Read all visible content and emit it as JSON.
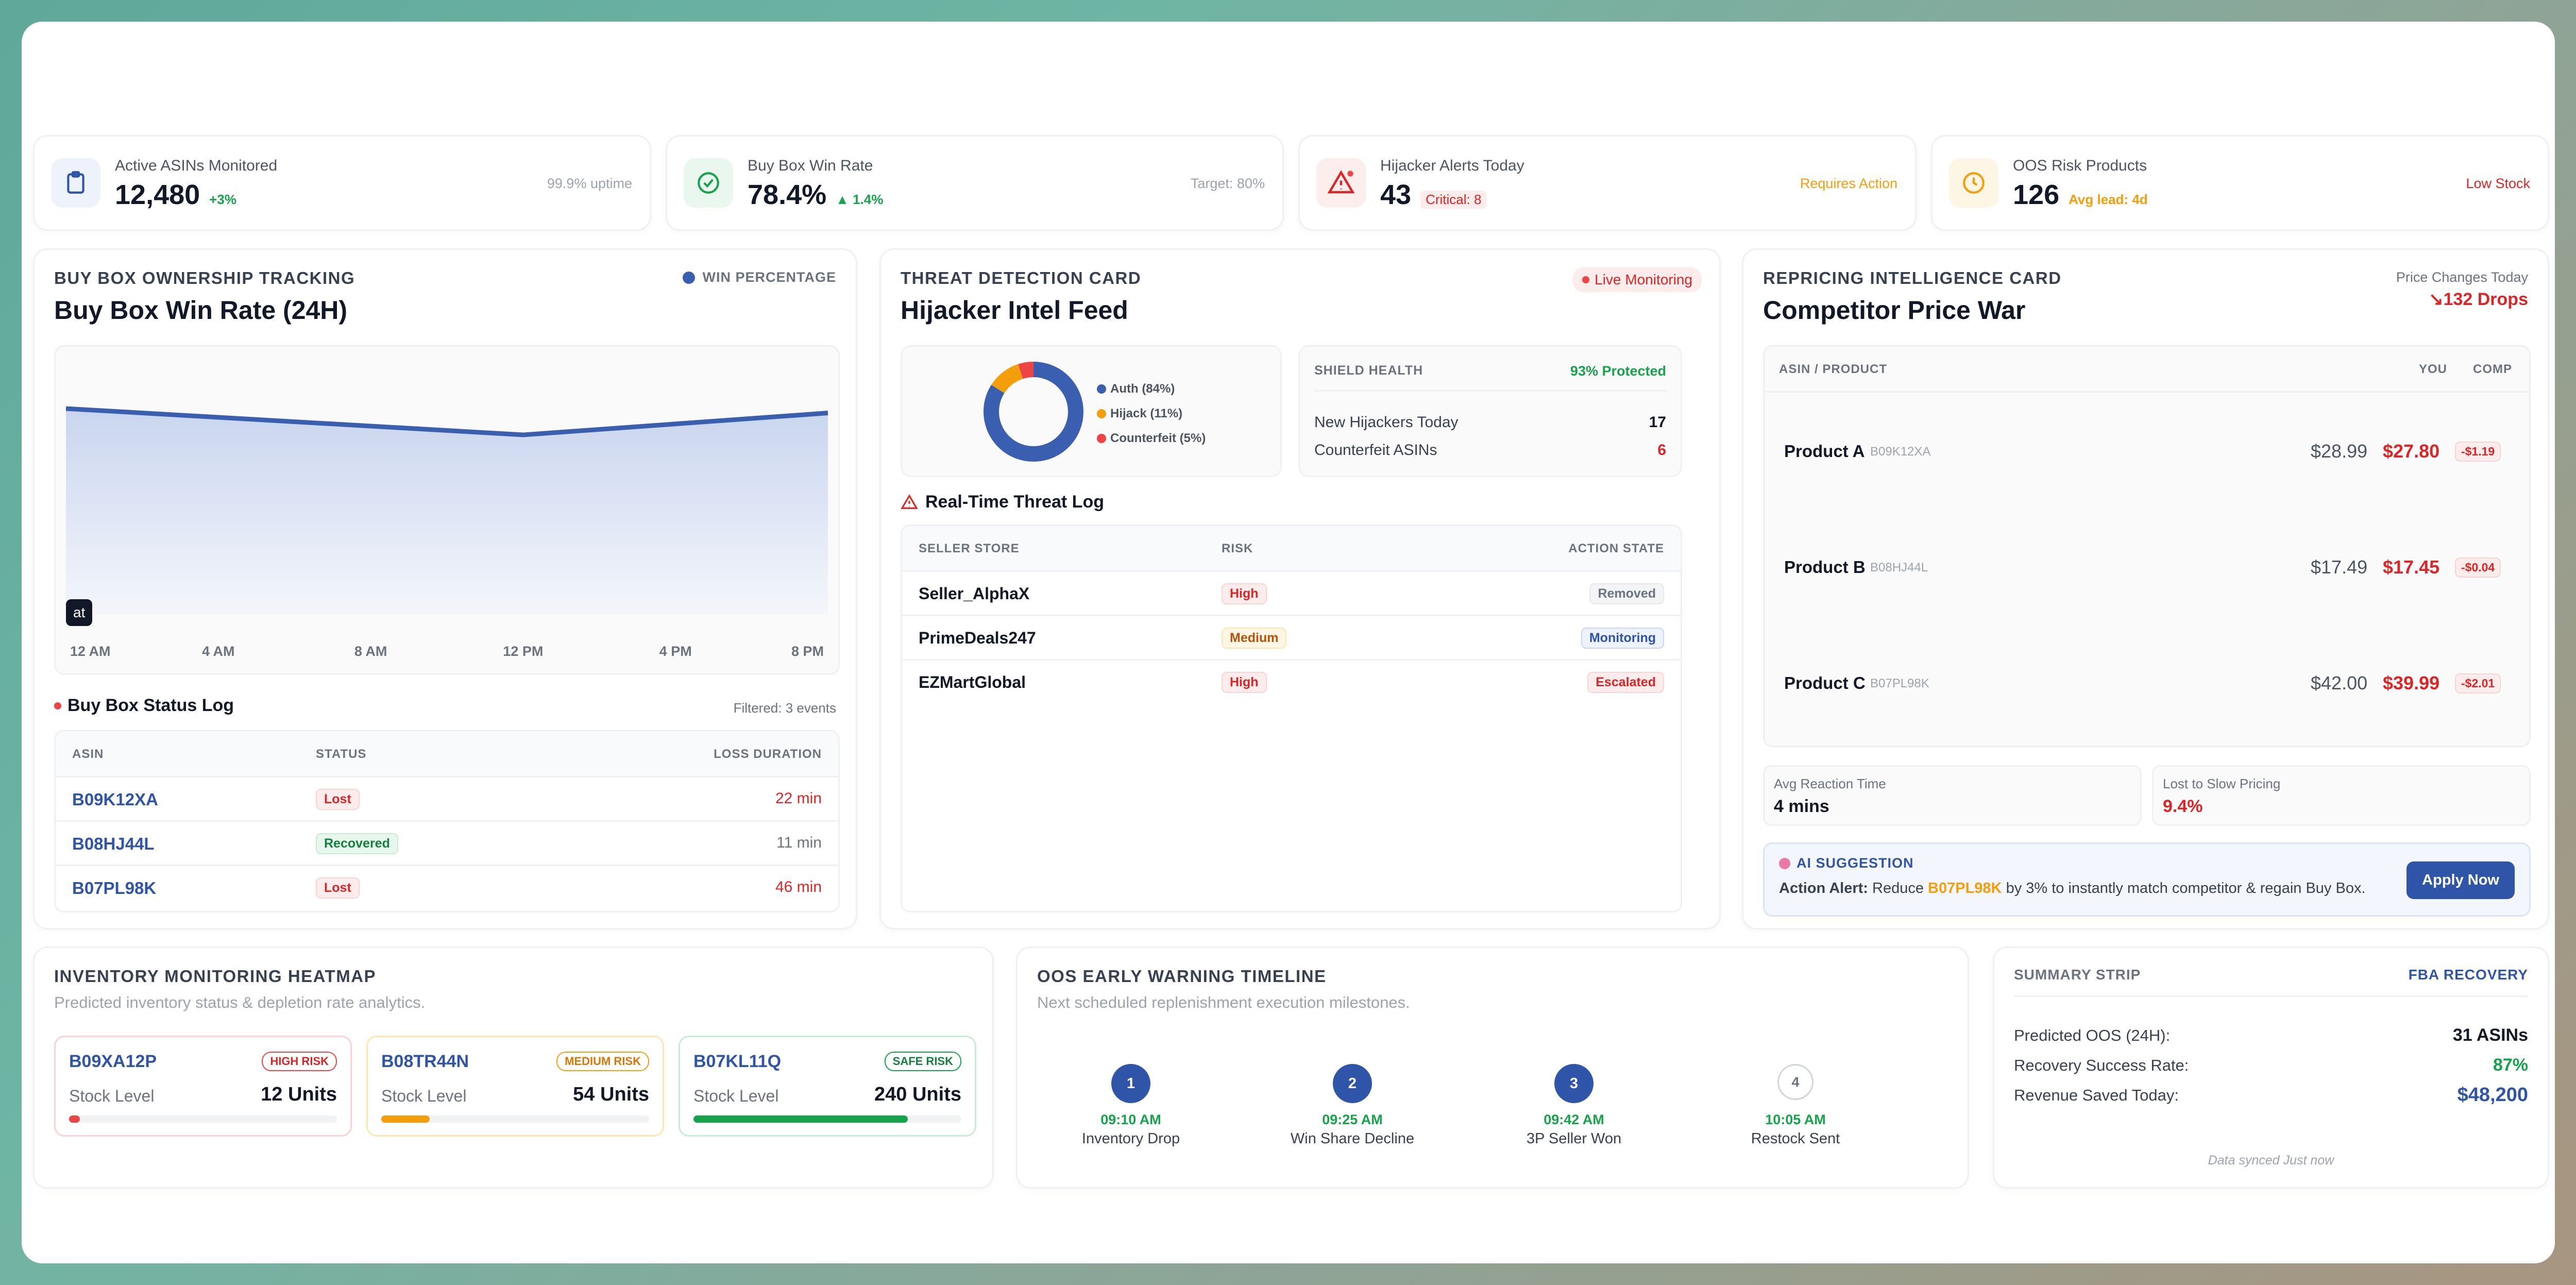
{
  "kpis": [
    {
      "label": "Active ASINs Monitored",
      "value": "12,480",
      "sub": "+3%",
      "right": "99.9% uptime",
      "icon": "clipboard-icon"
    },
    {
      "label": "Buy Box Win Rate",
      "value": "78.4%",
      "sub": "▲ 1.4%",
      "right": "Target: 80%",
      "icon": "check-circle-icon"
    },
    {
      "label": "Hijacker Alerts Today",
      "value": "43",
      "sub": "Critical: 8",
      "right": "Requires Action",
      "icon": "warning-icon"
    },
    {
      "label": "OOS Risk Products",
      "value": "126",
      "sub": "Avg lead: 4d",
      "right": "Low Stock",
      "icon": "clock-icon"
    }
  ],
  "buybox": {
    "section": "BUY BOX OWNERSHIP TRACKING",
    "title": "Buy Box Win Rate (24H)",
    "legend": "WIN PERCENTAGE",
    "tooltip": "at",
    "status_title": "Buy Box Status Log",
    "filtered": "Filtered: 3 events",
    "cols": [
      "ASIN",
      "STATUS",
      "LOSS DURATION"
    ],
    "rows": [
      {
        "asin": "B09K12XA",
        "status": "Lost",
        "duration": "22 min"
      },
      {
        "asin": "B08HJ44L",
        "status": "Recovered",
        "duration": "11 min"
      },
      {
        "asin": "B07PL98K",
        "status": "Lost",
        "duration": "46 min"
      }
    ]
  },
  "chart_data": {
    "type": "area",
    "title": "Buy Box Win Rate (24H)",
    "series": [
      {
        "name": "WIN PERCENTAGE",
        "values": [
          80,
          76,
          72,
          68,
          73,
          78
        ]
      }
    ],
    "categories": [
      "12 AM",
      "4 AM",
      "8 AM",
      "12 PM",
      "4 PM",
      "8 PM"
    ],
    "xlabel": "",
    "ylabel": "",
    "grid": false,
    "legend": "top-right",
    "color": "#3b5fb0"
  },
  "threat": {
    "section": "THREAT DETECTION CARD",
    "title": "Hijacker Intel Feed",
    "live": "Live Monitoring",
    "donut": [
      {
        "label": "Auth (84%)",
        "value": 84,
        "color": "#3b5fb0"
      },
      {
        "label": "Hijack (11%)",
        "value": 11,
        "color": "#f59e0b"
      },
      {
        "label": "Counterfeit (5%)",
        "value": 5,
        "color": "#ef4444"
      }
    ],
    "shield_label": "SHIELD HEALTH",
    "shield_value": "93% Protected",
    "stats": [
      {
        "label": "New Hijackers Today",
        "value": "17"
      },
      {
        "label": "Counterfeit ASINs",
        "value": "6"
      }
    ],
    "log_title": "Real-Time Threat Log",
    "cols": [
      "SELLER STORE",
      "RISK",
      "ACTION STATE"
    ],
    "rows": [
      {
        "seller": "Seller_AlphaX",
        "risk": "High",
        "state": "Removed"
      },
      {
        "seller": "PrimeDeals247",
        "risk": "Medium",
        "state": "Monitoring"
      },
      {
        "seller": "EZMartGlobal",
        "risk": "High",
        "state": "Escalated"
      }
    ]
  },
  "reprice": {
    "section": "REPRICING INTELLIGENCE CARD",
    "title": "Competitor Price War",
    "changes_label": "Price Changes Today",
    "changes_value": "↘132 Drops",
    "cols": [
      "ASIN / PRODUCT",
      "YOU",
      "COMP"
    ],
    "rows": [
      {
        "name": "Product A",
        "asin": "B09K12XA",
        "you": "$28.99",
        "comp": "$27.80",
        "diff": "-$1.19"
      },
      {
        "name": "Product B",
        "asin": "B08HJ44L",
        "you": "$17.49",
        "comp": "$17.45",
        "diff": "-$0.04"
      },
      {
        "name": "Product C",
        "asin": "B07PL98K",
        "you": "$42.00",
        "comp": "$39.99",
        "diff": "-$2.01"
      }
    ],
    "reaction_label": "Avg Reaction Time",
    "reaction_value": "4 mins",
    "lost_label": "Lost to Slow Pricing",
    "lost_value": "9.4%",
    "ai_label": "AI SUGGESTION",
    "ai_prefix": "Action Alert:",
    "ai_text1": "Reduce",
    "ai_asin": "B07PL98K",
    "ai_text2": "by 3% to instantly match competitor & regain Buy Box.",
    "apply": "Apply Now"
  },
  "inventory": {
    "section": "INVENTORY MONITORING HEATMAP",
    "subtitle": "Predicted inventory status & depletion rate analytics.",
    "items": [
      {
        "asin": "B09XA12P",
        "badge": "HIGH RISK",
        "label": "Stock Level",
        "units": "12 Units",
        "fill": 0.04,
        "color": "#ef4444"
      },
      {
        "asin": "B08TR44N",
        "badge": "MEDIUM RISK",
        "label": "Stock Level",
        "units": "54 Units",
        "fill": 0.18,
        "color": "#f59e0b"
      },
      {
        "asin": "B07KL11Q",
        "badge": "SAFE RISK",
        "label": "Stock Level",
        "units": "240 Units",
        "fill": 0.8,
        "color": "#16a34a"
      }
    ]
  },
  "oos": {
    "section": "OOS EARLY WARNING TIMELINE",
    "subtitle": "Next scheduled replenishment execution milestones.",
    "steps": [
      {
        "num": "1",
        "time": "09:10 AM",
        "label": "Inventory Drop"
      },
      {
        "num": "2",
        "time": "09:25 AM",
        "label": "Win Share Decline"
      },
      {
        "num": "3",
        "time": "09:42 AM",
        "label": "3P Seller Won"
      },
      {
        "num": "4",
        "time": "10:05 AM",
        "label": "Restock Sent"
      }
    ]
  },
  "summary": {
    "section": "SUMMARY STRIP",
    "tag": "FBA RECOVERY",
    "rows": [
      {
        "label": "Predicted OOS (24H):",
        "value": "31 ASINs"
      },
      {
        "label": "Recovery Success Rate:",
        "value": "87%"
      },
      {
        "label": "Revenue Saved Today:",
        "value": "$48,200"
      }
    ],
    "synced": "Data synced Just now"
  }
}
